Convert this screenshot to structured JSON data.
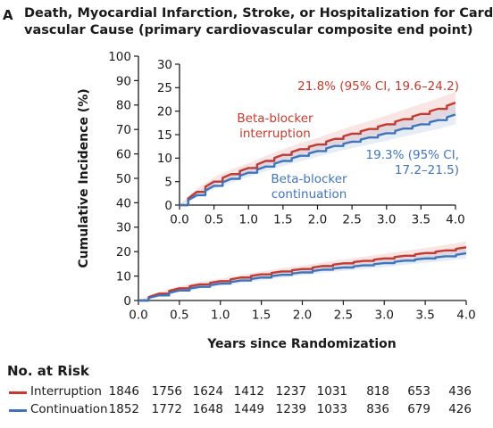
{
  "figure": {
    "panel_letter": "A",
    "title_line1": "Death, Myocardial Infarction, Stroke, or Hospitalization for Cardio-",
    "title_line2": "vascular Cause (primary cardiovascular composite end point)"
  },
  "chart_data": {
    "type": "line",
    "title": "Death, Myocardial Infarction, Stroke, or Hospitalization for Cardio- vascular Cause (primary cardiovascular composite end point)",
    "xlabel": "Years since Randomization",
    "ylabel": "Cumulative Incidence (%)",
    "xlim": [
      0,
      4
    ],
    "ylim": [
      0,
      100
    ],
    "x_ticks": [
      "0.0",
      "0.5",
      "1.0",
      "1.5",
      "2.0",
      "2.5",
      "3.0",
      "3.5",
      "4.0"
    ],
    "y_ticks": [
      "0",
      "10",
      "20",
      "30",
      "40",
      "50",
      "60",
      "70",
      "80",
      "90",
      "100"
    ],
    "x": [
      0,
      0.25,
      0.5,
      0.75,
      1.0,
      1.25,
      1.5,
      1.75,
      2.0,
      2.25,
      2.5,
      2.75,
      3.0,
      3.25,
      3.5,
      3.75,
      4.0
    ],
    "series": [
      {
        "name": "Interruption",
        "color": "#c8382c",
        "values": [
          0,
          2.8,
          5.0,
          6.6,
          7.9,
          9.4,
          10.7,
          11.9,
          12.9,
          14.1,
          15.2,
          16.2,
          17.2,
          18.3,
          19.4,
          20.5,
          21.8
        ],
        "ci_lower": [
          0,
          2.2,
          4.2,
          5.7,
          6.9,
          8.3,
          9.5,
          10.7,
          11.6,
          12.7,
          13.6,
          14.5,
          15.4,
          16.4,
          17.4,
          18.4,
          19.6
        ],
        "ci_upper": [
          0,
          3.5,
          5.9,
          7.6,
          8.9,
          10.5,
          11.9,
          13.2,
          14.3,
          15.6,
          16.8,
          17.9,
          19.1,
          20.3,
          21.5,
          22.7,
          24.2
        ]
      },
      {
        "name": "Continuation",
        "color": "#3f74bd",
        "values": [
          0,
          2.1,
          4.1,
          5.6,
          6.9,
          8.2,
          9.4,
          10.5,
          11.5,
          12.6,
          13.5,
          14.4,
          15.3,
          16.3,
          17.2,
          18.1,
          19.3
        ],
        "ci_lower": [
          0,
          1.6,
          3.4,
          4.8,
          6.0,
          7.2,
          8.3,
          9.3,
          10.3,
          11.3,
          12.1,
          12.9,
          13.7,
          14.6,
          15.4,
          16.2,
          17.2
        ],
        "ci_upper": [
          0,
          2.7,
          4.9,
          6.5,
          7.9,
          9.3,
          10.6,
          11.8,
          12.8,
          14.0,
          15.0,
          15.9,
          16.9,
          18.0,
          19.0,
          20.0,
          21.5
        ]
      }
    ],
    "inset": {
      "ylim": [
        0,
        30
      ],
      "xlim": [
        0,
        4
      ],
      "x_ticks": [
        "0.0",
        "0.5",
        "1.0",
        "1.5",
        "2.0",
        "2.5",
        "3.0",
        "3.5",
        "4.0"
      ],
      "y_ticks": [
        "0",
        "5",
        "10",
        "15",
        "20",
        "25",
        "30"
      ]
    },
    "annotations": {
      "interruption_label_line1": "Beta-blocker",
      "interruption_label_line2": "interruption",
      "continuation_label_line1": "Beta-blocker",
      "continuation_label_line2": "continuation",
      "interruption_estimate": "21.8% (95% CI, 19.6–24.2)",
      "continuation_estimate_line1": "19.3% (95% CI,",
      "continuation_estimate_line2": "17.2–21.5)"
    },
    "grid": false,
    "legend": "bottom (number at risk table)"
  },
  "risk_table": {
    "title": "No. at Risk",
    "rows": [
      {
        "label": "Interruption",
        "color": "#c8382c",
        "values": [
          "1846",
          "1756",
          "1624",
          "1412",
          "1237",
          "1031",
          "818",
          "653",
          "436"
        ]
      },
      {
        "label": "Continuation",
        "color": "#3f74bd",
        "values": [
          "1852",
          "1772",
          "1648",
          "1449",
          "1239",
          "1033",
          "836",
          "679",
          "426"
        ]
      }
    ]
  }
}
